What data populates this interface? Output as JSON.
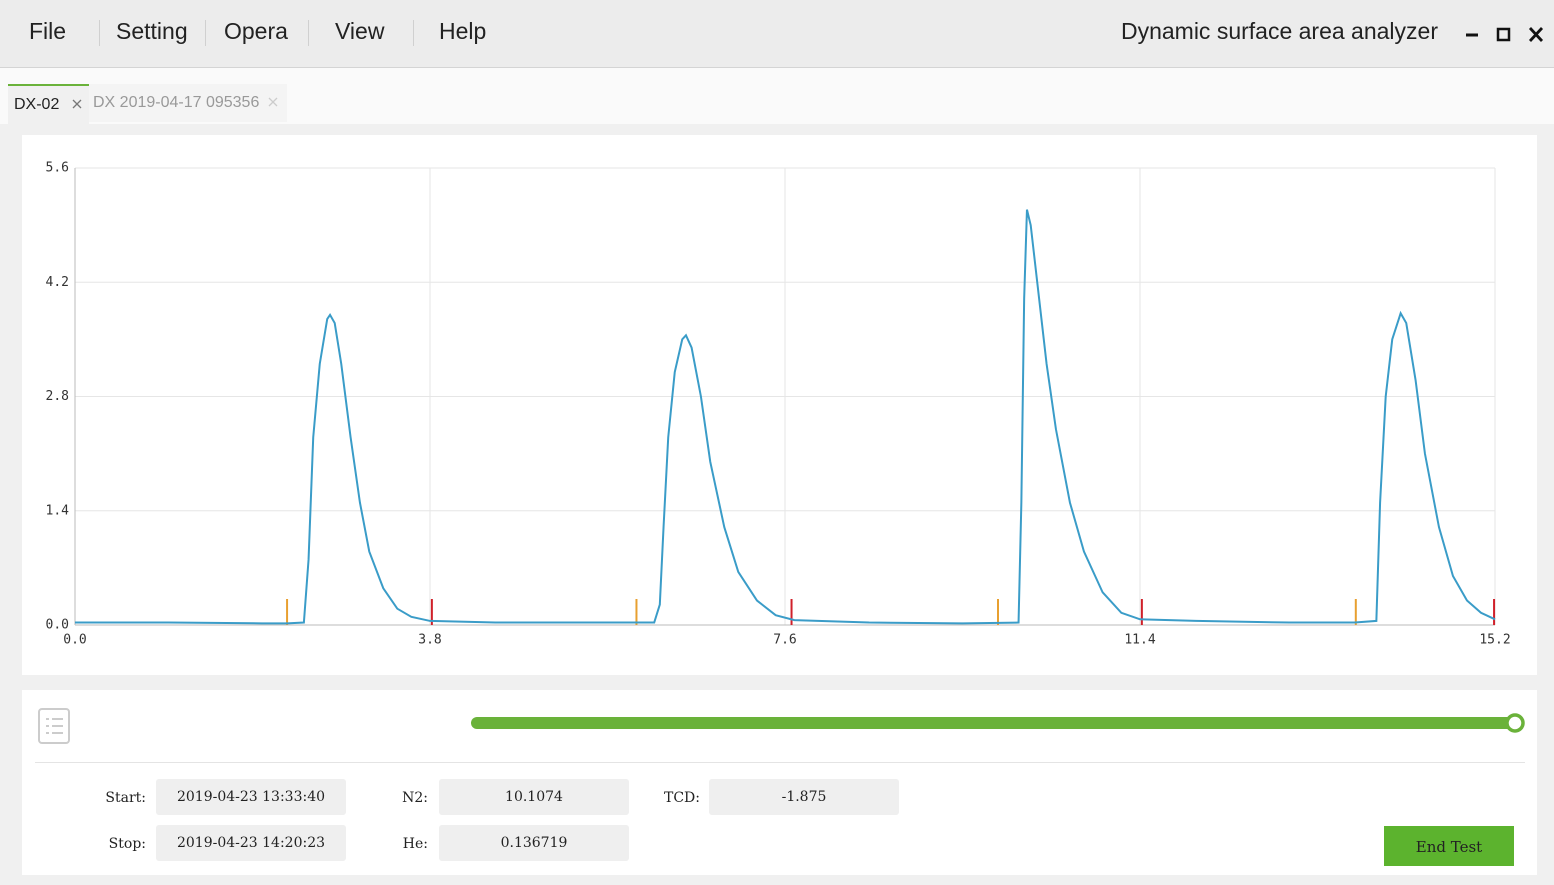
{
  "menu": [
    "File",
    "Setting",
    "Opera",
    "View",
    "Help"
  ],
  "app_title": "Dynamic surface area analyzer",
  "tabs": [
    "DX-02",
    "DX 2019-04-17 095356"
  ],
  "chart_data": {
    "type": "line",
    "x": [
      0.0,
      1.0,
      2.0,
      2.27,
      2.45,
      2.5,
      2.55,
      2.62,
      2.7,
      2.73,
      2.78,
      2.85,
      2.95,
      3.05,
      3.15,
      3.3,
      3.45,
      3.6,
      3.8,
      4.5,
      5.5,
      6.2,
      6.26,
      6.3,
      6.35,
      6.42,
      6.5,
      6.54,
      6.6,
      6.7,
      6.8,
      6.95,
      7.1,
      7.3,
      7.5,
      7.7,
      8.5,
      9.5,
      10.1,
      10.13,
      10.16,
      10.19,
      10.23,
      10.3,
      10.4,
      10.5,
      10.65,
      10.8,
      11.0,
      11.2,
      11.4,
      12.0,
      13.0,
      13.7,
      13.93,
      13.97,
      14.03,
      14.1,
      14.19,
      14.25,
      14.35,
      14.45,
      14.6,
      14.75,
      14.9,
      15.05,
      15.2
    ],
    "series": [
      {
        "color": "#3a9cc8",
        "values": [
          0.03,
          0.03,
          0.02,
          0.02,
          0.03,
          0.8,
          2.3,
          3.2,
          3.75,
          3.8,
          3.7,
          3.2,
          2.3,
          1.5,
          0.9,
          0.45,
          0.2,
          0.1,
          0.05,
          0.03,
          0.03,
          0.03,
          0.25,
          1.2,
          2.3,
          3.1,
          3.5,
          3.55,
          3.4,
          2.8,
          2.0,
          1.2,
          0.65,
          0.3,
          0.12,
          0.06,
          0.03,
          0.02,
          0.03,
          1.5,
          4.0,
          5.09,
          4.9,
          4.2,
          3.2,
          2.4,
          1.5,
          0.9,
          0.4,
          0.15,
          0.07,
          0.05,
          0.03,
          0.03,
          0.05,
          1.5,
          2.8,
          3.5,
          3.82,
          3.7,
          3.0,
          2.1,
          1.2,
          0.6,
          0.3,
          0.15,
          0.07
        ]
      }
    ],
    "start_markers": {
      "color": "#e8a030",
      "x": [
        2.27,
        6.01,
        9.88,
        13.71
      ]
    },
    "end_markers": {
      "color": "#d0202a",
      "x": [
        3.82,
        7.67,
        11.42,
        15.19
      ]
    },
    "xlim": [
      0,
      15.2
    ],
    "xticks": [
      {
        "value": 0,
        "label": "0.0"
      },
      3.8,
      7.6,
      11.4,
      15.2
    ],
    "ylim": [
      0,
      5.6
    ],
    "yticks": [
      {
        "value": 0,
        "label": "0.0"
      },
      1.4,
      2.8,
      4.2,
      5.6
    ],
    "grid": true
  },
  "fields": [
    {
      "label": "Start:",
      "value": "2019-04-23 13:33:40"
    },
    {
      "label": "Stop:",
      "value": "2019-04-23 14:20:23"
    },
    {
      "label": "N2:",
      "value": "10.1074"
    },
    {
      "label": "He:",
      "value": "0.136719"
    },
    {
      "label": "TCD:",
      "value": "-1.875"
    }
  ],
  "button": "End Test"
}
